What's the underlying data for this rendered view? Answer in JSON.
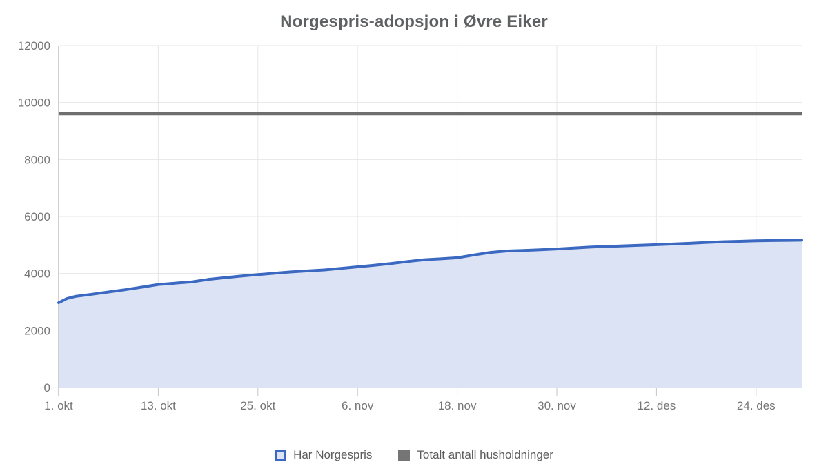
{
  "chart_data": {
    "type": "area",
    "title": "Norgespris-adopsjon i Øvre Eiker",
    "xlabel": "",
    "ylabel": "",
    "ylim": [
      0,
      12000
    ],
    "y_ticks": [
      0,
      2000,
      4000,
      6000,
      8000,
      10000,
      12000
    ],
    "x_domain_days": [
      0,
      89.5
    ],
    "x_ticks": [
      {
        "label": "1. okt",
        "day": 0
      },
      {
        "label": "13. okt",
        "day": 12
      },
      {
        "label": "25. okt",
        "day": 24
      },
      {
        "label": "6. nov",
        "day": 36
      },
      {
        "label": "18. nov",
        "day": 48
      },
      {
        "label": "30. nov",
        "day": 60
      },
      {
        "label": "12. des",
        "day": 72
      },
      {
        "label": "24. des",
        "day": 84
      }
    ],
    "grid": true,
    "legend_position": "bottom",
    "colors": {
      "line": "#3b68c0",
      "area_fill": "#dbe3f5",
      "total_line": "#6e6e6e",
      "legend_total_swatch": "#757575",
      "grid": "#e6e6e6",
      "tick": "#c6c6c6",
      "axis": "#9aa0a6",
      "label": "#757575",
      "title": "#5f6062"
    },
    "series": [
      {
        "name": "Har Norgespris",
        "type": "area-line",
        "color": "#3b68c0",
        "fill": "#dbe3f5",
        "points": [
          [
            0,
            2975
          ],
          [
            1,
            3120
          ],
          [
            2,
            3195
          ],
          [
            4,
            3270
          ],
          [
            6,
            3350
          ],
          [
            8,
            3430
          ],
          [
            10,
            3520
          ],
          [
            12,
            3615
          ],
          [
            14,
            3660
          ],
          [
            16,
            3705
          ],
          [
            18,
            3790
          ],
          [
            20,
            3855
          ],
          [
            22,
            3910
          ],
          [
            24,
            3960
          ],
          [
            26,
            4010
          ],
          [
            28,
            4055
          ],
          [
            30,
            4090
          ],
          [
            32,
            4125
          ],
          [
            34,
            4180
          ],
          [
            36,
            4235
          ],
          [
            38,
            4290
          ],
          [
            40,
            4350
          ],
          [
            42,
            4420
          ],
          [
            44,
            4480
          ],
          [
            46,
            4515
          ],
          [
            48,
            4550
          ],
          [
            50,
            4650
          ],
          [
            52,
            4740
          ],
          [
            54,
            4790
          ],
          [
            56,
            4810
          ],
          [
            58,
            4835
          ],
          [
            60,
            4860
          ],
          [
            62,
            4895
          ],
          [
            64,
            4925
          ],
          [
            66,
            4950
          ],
          [
            68,
            4970
          ],
          [
            70,
            4990
          ],
          [
            72,
            5010
          ],
          [
            74,
            5035
          ],
          [
            76,
            5060
          ],
          [
            78,
            5090
          ],
          [
            80,
            5115
          ],
          [
            82,
            5130
          ],
          [
            84,
            5145
          ],
          [
            86,
            5155
          ],
          [
            88,
            5163
          ],
          [
            89.5,
            5168
          ]
        ]
      },
      {
        "name": "Totalt antall husholdninger",
        "type": "hline",
        "color": "#6e6e6e",
        "value": 9612
      }
    ]
  }
}
